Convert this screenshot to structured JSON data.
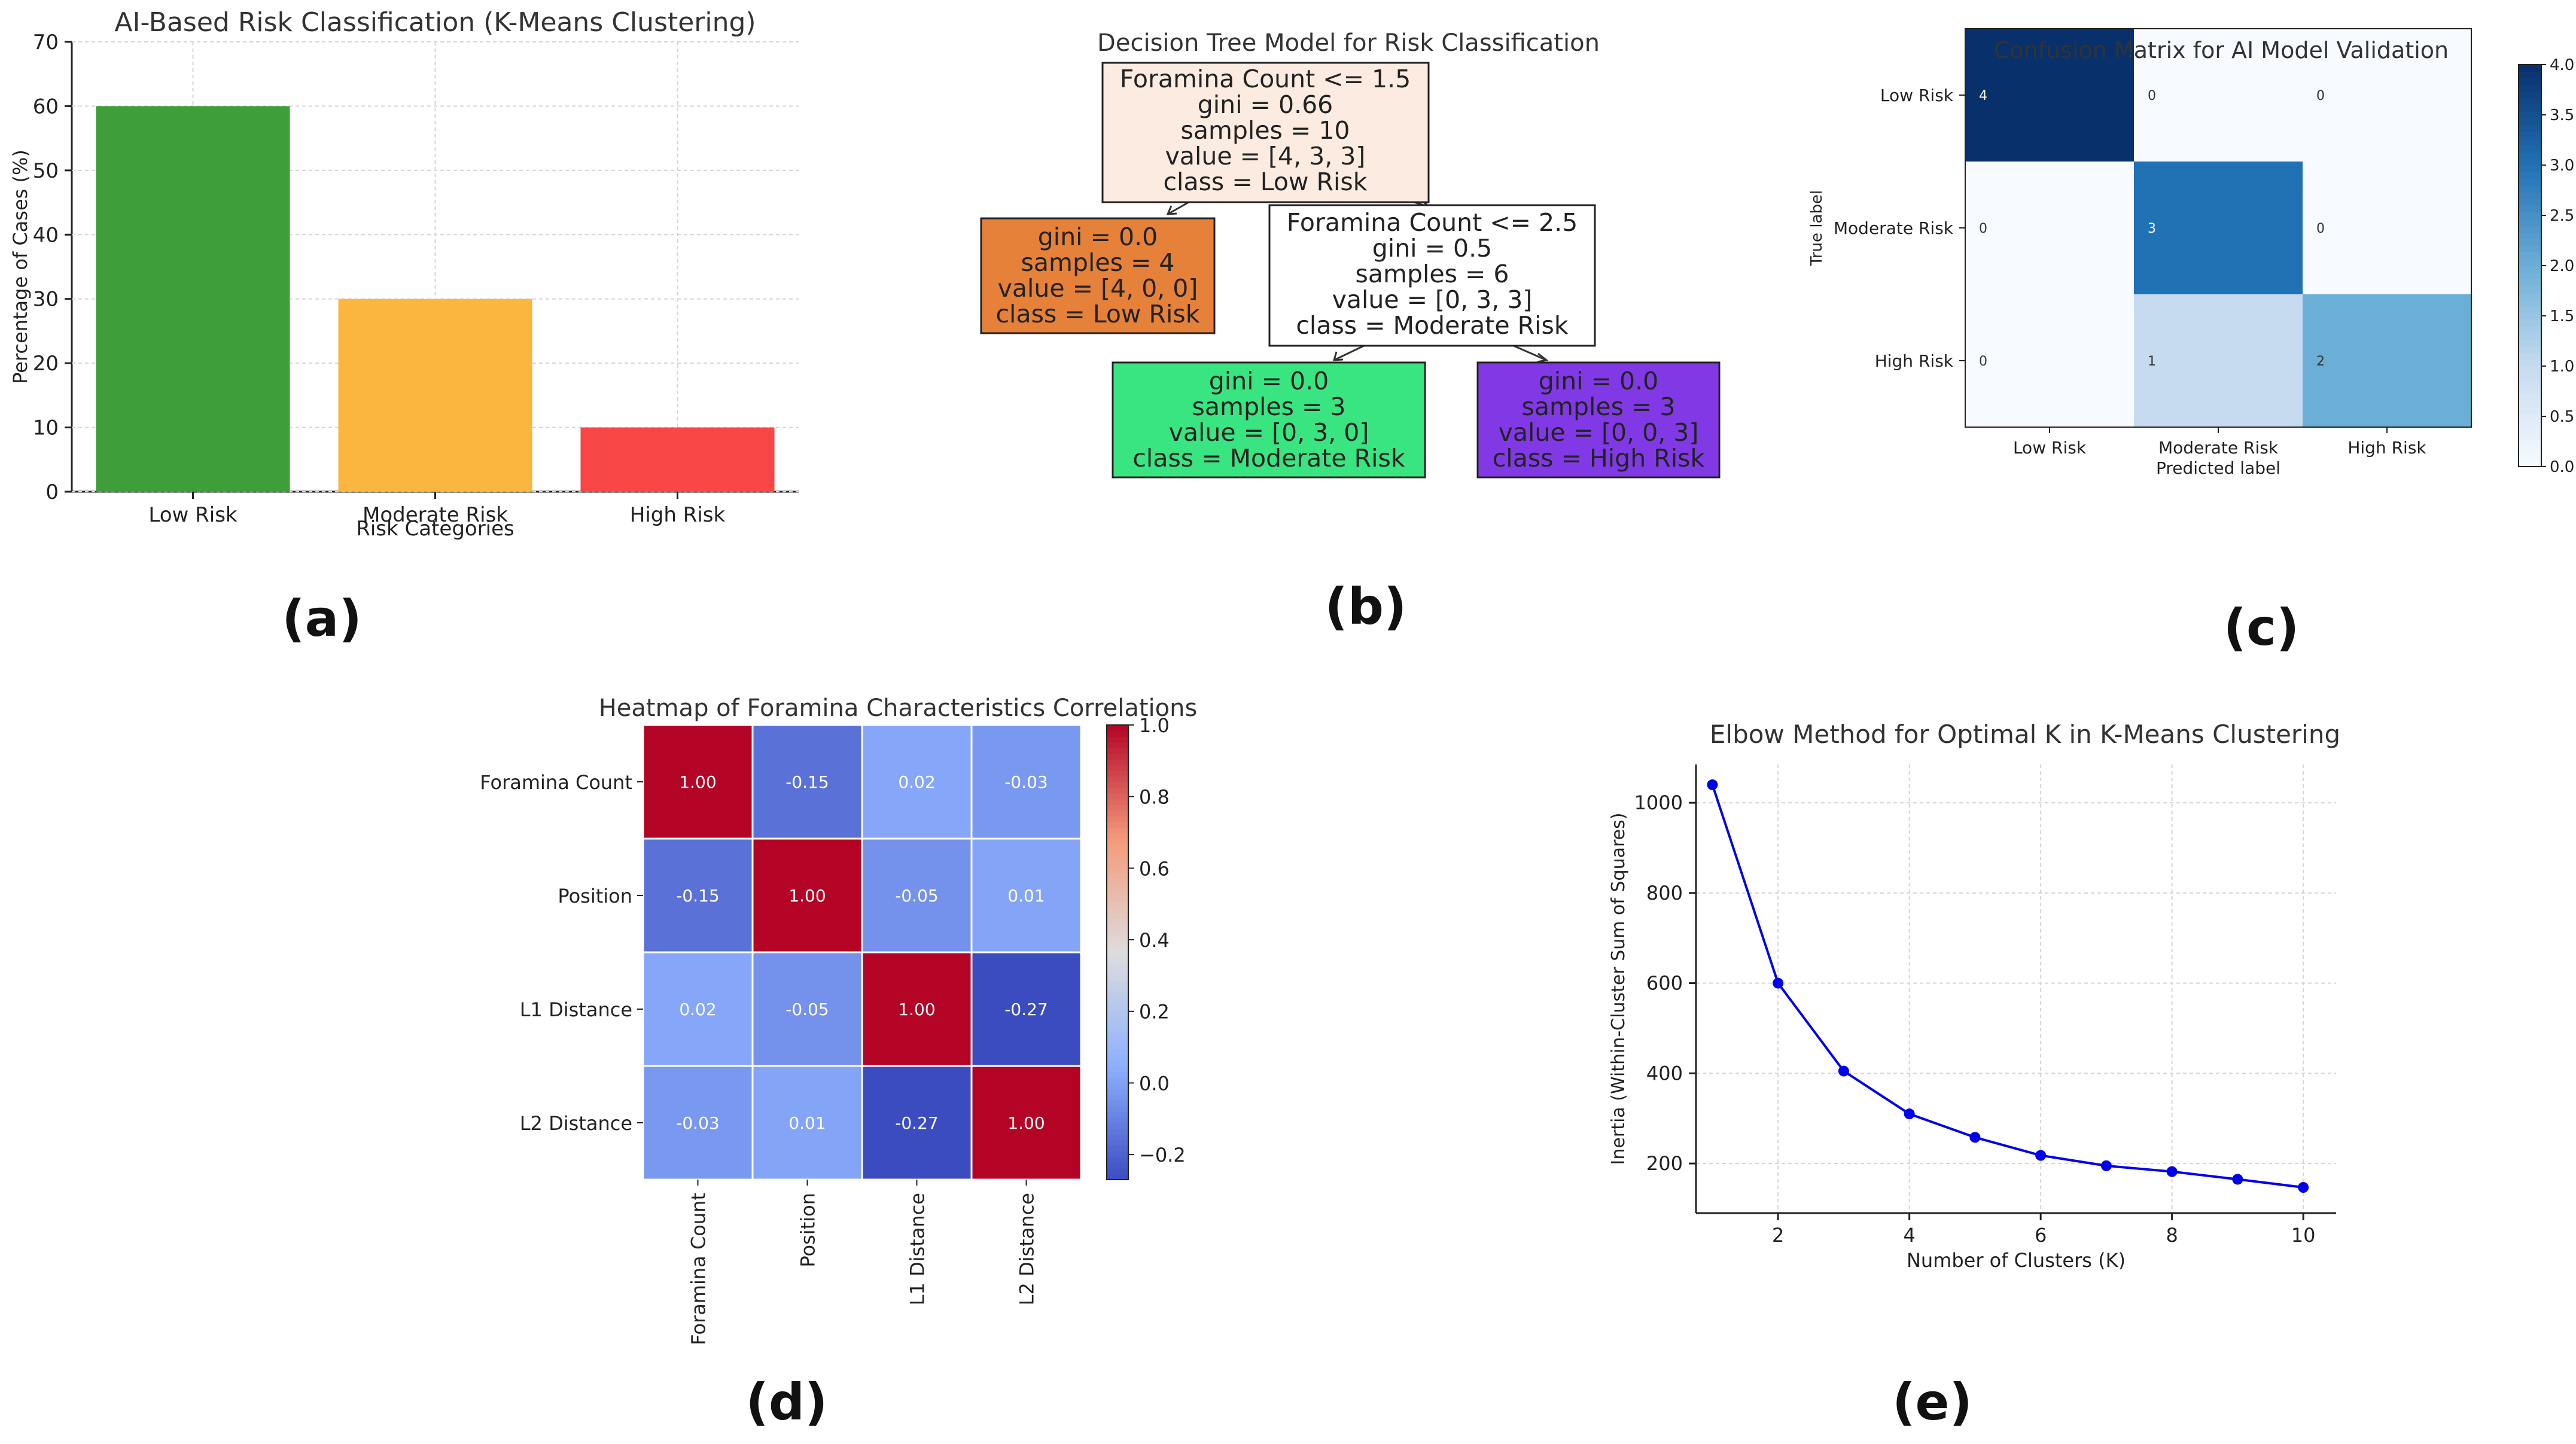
{
  "chart_data": [
    {
      "id": "a",
      "type": "bar",
      "title": "AI-Based Risk Classification (K-Means Clustering)",
      "xlabel": "Risk Categories",
      "ylabel": "Percentage of Cases (%)",
      "categories": [
        "Low Risk",
        "Moderate Risk",
        "High Risk"
      ],
      "values": [
        60,
        30,
        10
      ],
      "colors": [
        "#3e9e3a",
        "#fbb63f",
        "#f84545"
      ],
      "ylim": [
        0,
        70
      ],
      "yticks": [
        0,
        10,
        20,
        30,
        40,
        50,
        60,
        70
      ],
      "grid": true
    },
    {
      "id": "c",
      "type": "heatmap",
      "title": "Confusion Matrix for AI Model Validation",
      "xlabel": "Predicted label",
      "ylabel": "True label",
      "rows": [
        "Low Risk",
        "Moderate Risk",
        "High Risk"
      ],
      "cols": [
        "Low Risk",
        "Moderate Risk",
        "High Risk"
      ],
      "matrix": [
        [
          4,
          0,
          0
        ],
        [
          0,
          3,
          0
        ],
        [
          0,
          1,
          2
        ]
      ],
      "vmin": 0,
      "vmax": 4,
      "colorbar_ticks": [
        "0.0",
        "0.5",
        "1.0",
        "1.5",
        "2.0",
        "2.5",
        "3.0",
        "3.5",
        "4.0"
      ]
    },
    {
      "id": "d",
      "type": "heatmap",
      "title": "Heatmap of Foramina Characteristics Correlations",
      "rows": [
        "Foramina Count",
        "Position",
        "L1 Distance",
        "L2 Distance"
      ],
      "cols": [
        "Foramina Count",
        "Position",
        "L1 Distance",
        "L2 Distance"
      ],
      "matrix": [
        [
          1.0,
          -0.15,
          0.02,
          -0.03
        ],
        [
          -0.15,
          1.0,
          -0.05,
          0.01
        ],
        [
          0.02,
          -0.05,
          1.0,
          -0.27
        ],
        [
          -0.03,
          0.01,
          -0.27,
          1.0
        ]
      ],
      "labels": [
        [
          "1.00",
          "-0.15",
          "0.02",
          "-0.03"
        ],
        [
          "-0.15",
          "1.00",
          "-0.05",
          "0.01"
        ],
        [
          "0.02",
          "-0.05",
          "1.00",
          "-0.27"
        ],
        [
          "-0.03",
          "0.01",
          "-0.27",
          "1.00"
        ]
      ],
      "vmin": -0.27,
      "vmax": 1.0,
      "colorbar_ticks": [
        "1.0",
        "0.8",
        "0.6",
        "0.4",
        "0.2",
        "0.0",
        "−0.2"
      ],
      "colorbar_values": [
        1.0,
        0.8,
        0.6,
        0.4,
        0.2,
        0.0,
        -0.2
      ]
    },
    {
      "id": "e",
      "type": "line",
      "title": "Elbow Method for Optimal K in K-Means Clustering",
      "xlabel": "Number of Clusters (K)",
      "ylabel": "Inertia (Within-Cluster Sum of Squares)",
      "x": [
        1,
        2,
        3,
        4,
        5,
        6,
        7,
        8,
        9,
        10
      ],
      "y": [
        1040,
        600,
        405,
        310,
        258,
        218,
        195,
        182,
        165,
        147
      ],
      "xticks": [
        2,
        4,
        6,
        8,
        10
      ],
      "yticks": [
        200,
        400,
        600,
        800,
        1000
      ],
      "xlim": [
        0.75,
        10.5
      ],
      "ylim": [
        90,
        1085
      ],
      "color": "#0000ee",
      "grid": true
    }
  ],
  "tree": {
    "title": "Decision Tree Model for Risk Classification",
    "root": [
      "Foramina Count <= 1.5",
      "gini = 0.66",
      "samples = 10",
      "value = [4, 3, 3]",
      "class = Low Risk"
    ],
    "left": [
      "gini = 0.0",
      "samples = 4",
      "value = [4, 0, 0]",
      "class = Low Risk"
    ],
    "right": [
      "Foramina Count <= 2.5",
      "gini = 0.5",
      "samples = 6",
      "value = [0, 3, 3]",
      "class = Moderate Risk"
    ],
    "right_left": [
      "gini = 0.0",
      "samples = 3",
      "value = [0, 3, 0]",
      "class = Moderate Risk"
    ],
    "right_right": [
      "gini = 0.0",
      "samples = 3",
      "value = [0, 0, 3]",
      "class = High Risk"
    ],
    "colors": {
      "root": "#fcebe0",
      "left": "#e58139",
      "right": "#ffffff",
      "right_left": "#39e581",
      "right_right": "#8139e5"
    }
  },
  "panel_labels": [
    "(a)",
    "(b)",
    "(c)",
    "(d)",
    "(e)"
  ]
}
